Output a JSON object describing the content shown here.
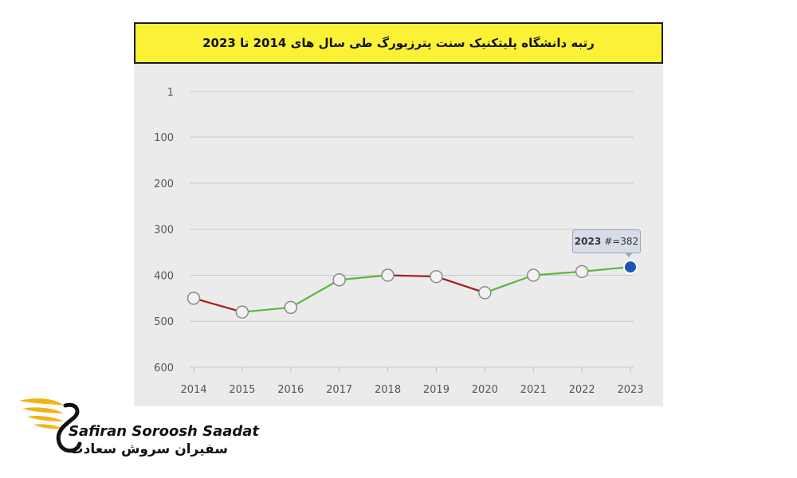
{
  "header": {
    "title": "رتبه دانشگاه پلیتکنیک سنت پترزبورگ طی سال های 2014 تا 2023"
  },
  "tooltip": {
    "year": "2023",
    "value_text": "#=382"
  },
  "brand": {
    "name_en": "Safiran Soroosh Saadat",
    "name_fa": "سفیران سروش سعادت"
  },
  "colors": {
    "panel_bg": "#ebebeb",
    "title_bg": "#fbf237",
    "increase_line": "#5bb63a",
    "decrease_line": "#a51c1c",
    "highlight_point": "#1b55b5",
    "point_fill": "#f2f2f2",
    "point_stroke": "#8a8a8a",
    "logo_gold": "#f0b418"
  },
  "chart_data": {
    "type": "line",
    "title": "رتبه دانشگاه پلیتکنیک سنت پترزبورگ طی سال های 2014 تا 2023",
    "x": [
      "2014",
      "2015",
      "2016",
      "2017",
      "2018",
      "2019",
      "2020",
      "2021",
      "2022",
      "2023"
    ],
    "series": [
      {
        "values": [
          450,
          480,
          470,
          410,
          400,
          403,
          438,
          400,
          392,
          382
        ]
      }
    ],
    "y_ticks": [
      1,
      100,
      200,
      300,
      400,
      500,
      600
    ],
    "ylim": [
      600,
      1
    ],
    "y_inverted": true,
    "grid": true,
    "highlight": {
      "x": "2023",
      "y": 382
    },
    "segment_colors": "green where rank improves, dark red where rank worsens"
  }
}
